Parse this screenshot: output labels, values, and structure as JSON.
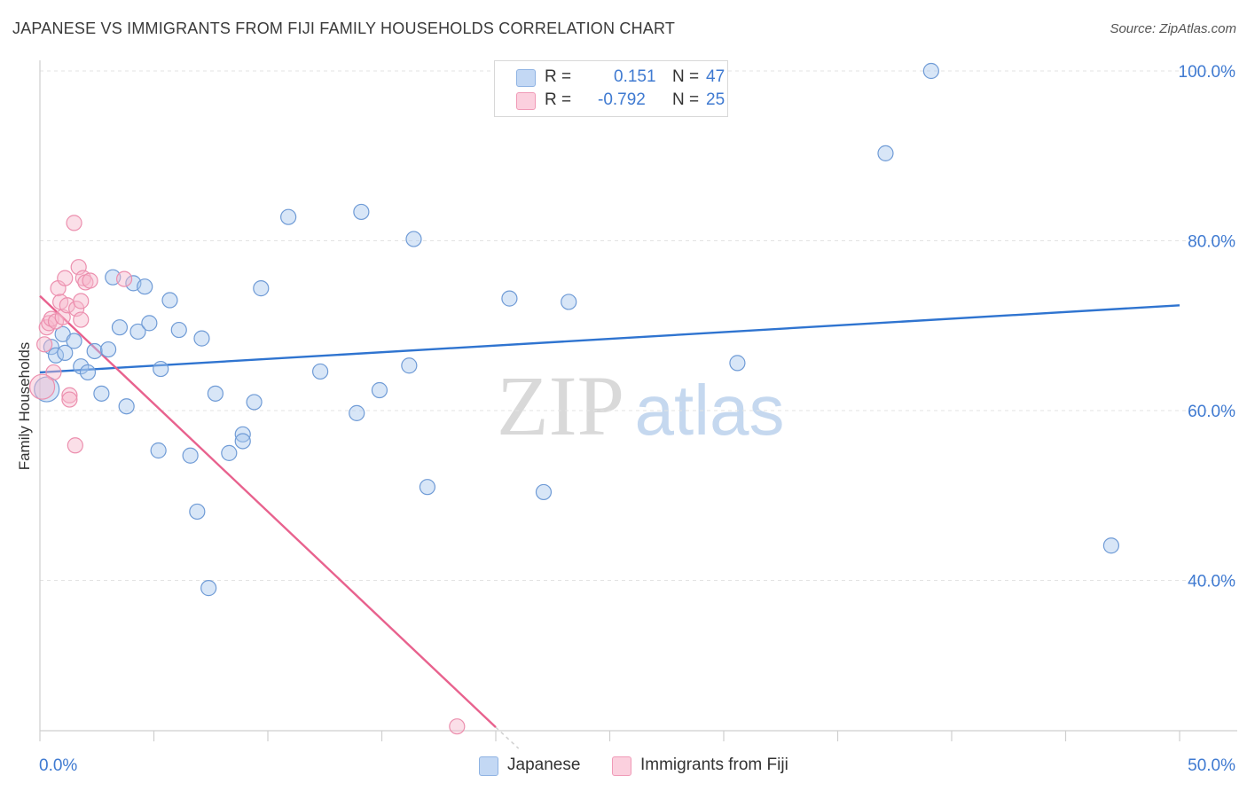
{
  "title": "JAPANESE VS IMMIGRANTS FROM FIJI FAMILY HOUSEHOLDS CORRELATION CHART",
  "source": "Source: ZipAtlas.com",
  "watermark": {
    "zip": "ZIP",
    "atlas": "atlas"
  },
  "legend": {
    "r_label": "R =",
    "n_label": "N =",
    "rows": [
      {
        "r": "0.151",
        "n": "47"
      },
      {
        "r": "-0.792",
        "n": "25"
      }
    ]
  },
  "chart_data": {
    "type": "scatter",
    "title": "JAPANESE VS IMMIGRANTS FROM FIJI FAMILY HOUSEHOLDS CORRELATION CHART",
    "ylabel": "Family Households",
    "xlabel": "",
    "xlim": [
      0,
      50
    ],
    "ylim": [
      22,
      102
    ],
    "x_tick_labels": [
      "0.0%",
      "50.0%"
    ],
    "y_tick_labels": [
      "40.0%",
      "60.0%",
      "80.0%",
      "100.0%"
    ],
    "y_ticks": [
      40,
      60,
      80,
      100
    ],
    "grid": true,
    "legend_position": "top-center",
    "series": [
      {
        "name": "Japanese",
        "color": "#a9c7ee",
        "stroke": "#6f9bd6",
        "trend_color": "#2f74d0",
        "trend": {
          "x": [
            0,
            50
          ],
          "y": [
            64.5,
            72.4
          ]
        },
        "points": [
          [
            0.3,
            62.5
          ],
          [
            0.5,
            67.5
          ],
          [
            0.7,
            66.5
          ],
          [
            1.0,
            69.0
          ],
          [
            1.1,
            66.8
          ],
          [
            1.5,
            68.2
          ],
          [
            1.8,
            65.2
          ],
          [
            2.1,
            64.5
          ],
          [
            2.4,
            67.0
          ],
          [
            2.7,
            62.0
          ],
          [
            3.0,
            67.2
          ],
          [
            3.2,
            75.7
          ],
          [
            3.5,
            69.8
          ],
          [
            3.8,
            60.5
          ],
          [
            4.1,
            75.0
          ],
          [
            4.3,
            69.3
          ],
          [
            4.6,
            74.6
          ],
          [
            4.8,
            70.3
          ],
          [
            5.2,
            55.3
          ],
          [
            5.3,
            64.9
          ],
          [
            5.7,
            73.0
          ],
          [
            6.1,
            69.5
          ],
          [
            6.6,
            54.7
          ],
          [
            6.9,
            48.1
          ],
          [
            7.1,
            68.5
          ],
          [
            7.4,
            39.1
          ],
          [
            7.7,
            62.0
          ],
          [
            8.3,
            55.0
          ],
          [
            8.9,
            57.2
          ],
          [
            8.9,
            56.4
          ],
          [
            9.4,
            61.0
          ],
          [
            9.7,
            74.4
          ],
          [
            10.9,
            82.8
          ],
          [
            12.3,
            64.6
          ],
          [
            13.9,
            59.7
          ],
          [
            14.1,
            83.4
          ],
          [
            14.9,
            62.4
          ],
          [
            16.2,
            65.3
          ],
          [
            16.4,
            80.2
          ],
          [
            17.0,
            51.0
          ],
          [
            20.6,
            73.2
          ],
          [
            22.1,
            50.4
          ],
          [
            23.2,
            72.8
          ],
          [
            30.6,
            65.6
          ],
          [
            37.1,
            90.3
          ],
          [
            39.1,
            100.0
          ],
          [
            47.0,
            44.1
          ]
        ]
      },
      {
        "name": "Immigrants from Fiji",
        "color": "#f7b9cd",
        "stroke": "#ec8fae",
        "trend_color": "#e8628e",
        "trend": {
          "x": [
            0,
            20.0
          ],
          "y": [
            73.5,
            22.7
          ]
        },
        "trend_dashed_extension": {
          "x": [
            20.0,
            21.0
          ],
          "y": [
            22.7,
            20.2
          ]
        },
        "points": [
          [
            0.2,
            67.8
          ],
          [
            0.3,
            69.8
          ],
          [
            0.4,
            70.3
          ],
          [
            0.5,
            70.8
          ],
          [
            0.6,
            64.5
          ],
          [
            0.7,
            70.5
          ],
          [
            0.8,
            74.4
          ],
          [
            0.9,
            72.8
          ],
          [
            1.0,
            71.0
          ],
          [
            1.1,
            75.6
          ],
          [
            1.2,
            72.4
          ],
          [
            1.3,
            61.8
          ],
          [
            1.3,
            61.3
          ],
          [
            1.5,
            82.1
          ],
          [
            1.55,
            55.9
          ],
          [
            1.6,
            72.0
          ],
          [
            1.7,
            76.9
          ],
          [
            1.8,
            72.9
          ],
          [
            1.8,
            70.7
          ],
          [
            1.9,
            75.6
          ],
          [
            2.0,
            75.1
          ],
          [
            2.2,
            75.3
          ],
          [
            3.7,
            75.5
          ],
          [
            18.3,
            22.8
          ],
          [
            0.1,
            62.8
          ]
        ]
      }
    ]
  }
}
